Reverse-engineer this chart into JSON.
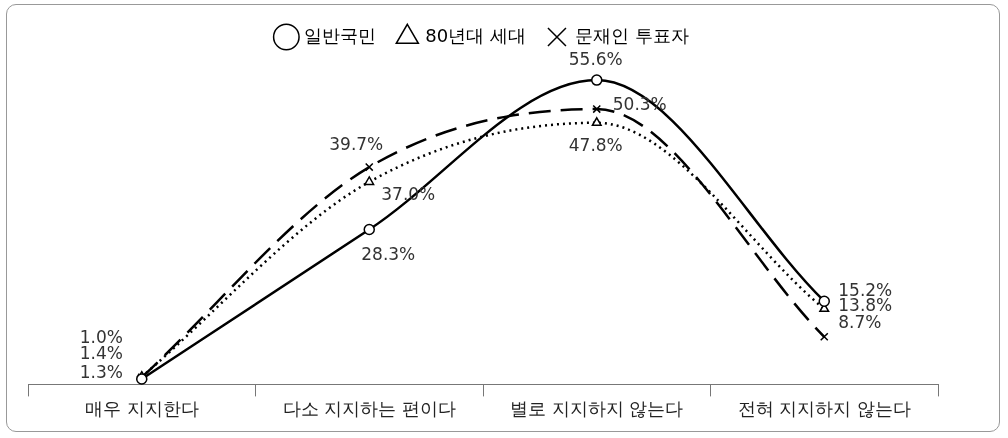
{
  "chart_data": {
    "type": "line",
    "categories": [
      "매우 지지한다",
      "다소 지지하는 편이다",
      "별로 지지하지 않는다",
      "전혀 지지하지 않는다"
    ],
    "series": [
      {
        "name": "일반국민",
        "color": "#000000",
        "marker": "circle",
        "line_style": "solid",
        "values": [
          1.0,
          28.3,
          55.6,
          15.2
        ],
        "value_labels": [
          "1.0%",
          "28.3%",
          "55.6%",
          "15.2%"
        ]
      },
      {
        "name": "80년대 세대",
        "color": "#000000",
        "marker": "triangle",
        "line_style": "dotted",
        "values": [
          1.4,
          37.0,
          47.8,
          13.8
        ],
        "value_labels": [
          "1.4%",
          "37.0%",
          "47.8%",
          "13.8%"
        ]
      },
      {
        "name": "문재인 투표자",
        "color": "#000000",
        "marker": "cross",
        "line_style": "dashed",
        "values": [
          1.3,
          39.7,
          50.3,
          8.7
        ],
        "value_labels": [
          "1.3%",
          "39.7%",
          "50.3%",
          "8.7%"
        ]
      }
    ],
    "legend": "top",
    "grid": false
  }
}
